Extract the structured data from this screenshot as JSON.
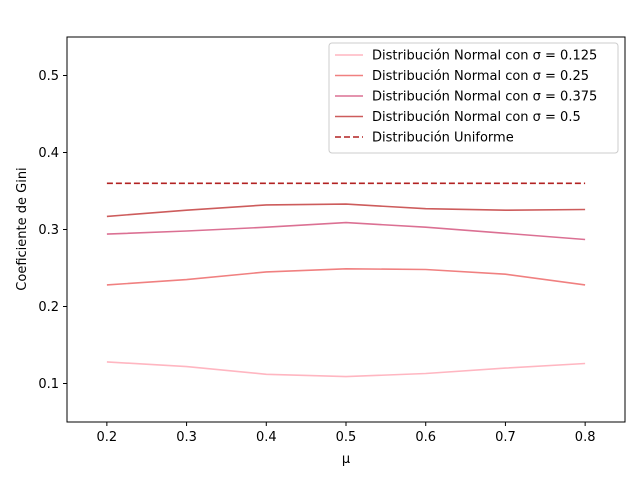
{
  "chart_data": {
    "type": "line",
    "title": "",
    "xlabel": "μ",
    "ylabel": "Coeficiente de Gini",
    "xlim": [
      0.15,
      0.85
    ],
    "ylim": [
      0.05,
      0.55
    ],
    "x_ticks": [
      "0.2",
      "0.3",
      "0.4",
      "0.5",
      "0.6",
      "0.7",
      "0.8"
    ],
    "y_ticks": [
      "0.1",
      "0.2",
      "0.3",
      "0.4",
      "0.5"
    ],
    "x": [
      0.2,
      0.3,
      0.4,
      0.5,
      0.6,
      0.7,
      0.8
    ],
    "legend_position": "top-right",
    "grid": false,
    "series": [
      {
        "name": "Distribución Normal con σ = 0.125",
        "color": "#ffb6c1",
        "style": "solid",
        "values": [
          0.128,
          0.122,
          0.112,
          0.109,
          0.113,
          0.12,
          0.126
        ]
      },
      {
        "name": "Distribución Normal con σ = 0.25",
        "color": "#f08080",
        "style": "solid",
        "values": [
          0.228,
          0.235,
          0.245,
          0.249,
          0.248,
          0.242,
          0.228
        ]
      },
      {
        "name": "Distribución Normal con σ = 0.375",
        "color": "#db7093",
        "style": "solid",
        "values": [
          0.294,
          0.298,
          0.303,
          0.309,
          0.303,
          0.295,
          0.287
        ]
      },
      {
        "name": "Distribución Normal con σ = 0.5",
        "color": "#cd5c5c",
        "style": "solid",
        "values": [
          0.317,
          0.325,
          0.332,
          0.333,
          0.327,
          0.325,
          0.326
        ]
      },
      {
        "name": "Distribución Uniforme",
        "color": "#b22222",
        "style": "dashed",
        "values": [
          0.36,
          0.36,
          0.36,
          0.36,
          0.36,
          0.36,
          0.36
        ]
      }
    ]
  }
}
